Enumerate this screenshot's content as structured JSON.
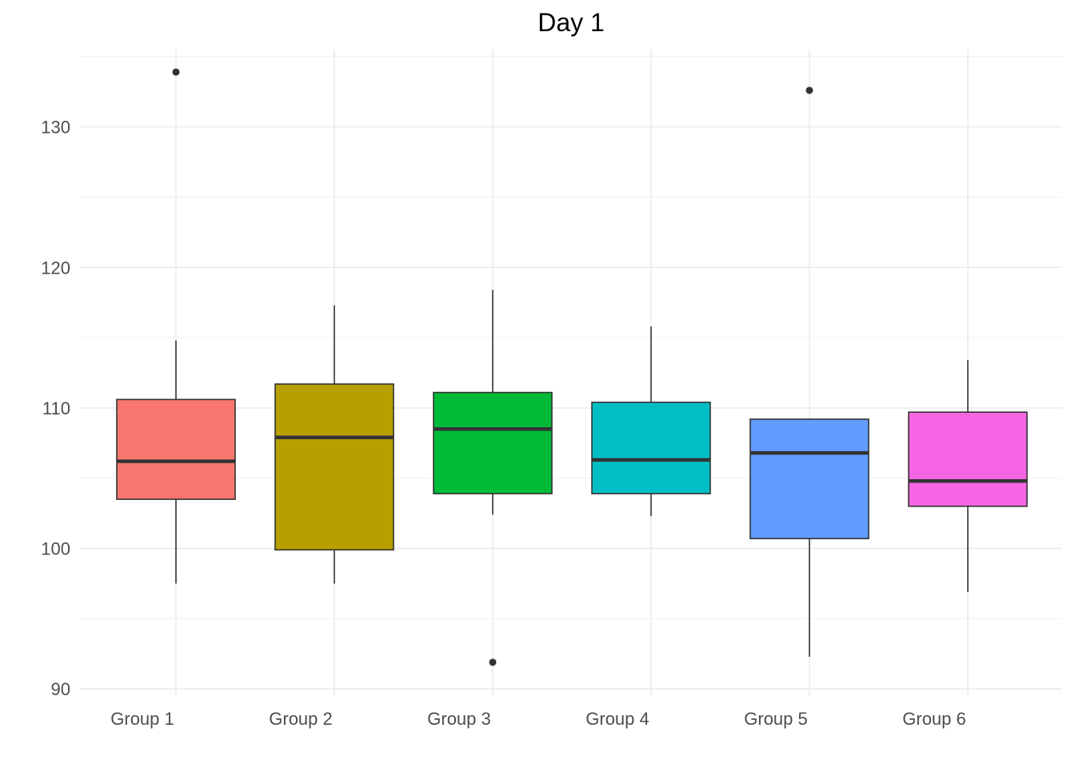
{
  "chart_data": {
    "type": "boxplot",
    "title": "Day 1",
    "xlabel": "",
    "ylabel": "",
    "ylim": [
      89.5,
      135.5
    ],
    "y_ticks": [
      90,
      100,
      110,
      120,
      130
    ],
    "grid": true,
    "legend": "none",
    "categories": [
      "Group 1",
      "Group 2",
      "Group 3",
      "Group 4",
      "Group 5",
      "Group 6"
    ],
    "boxes": [
      {
        "group": "Group 1",
        "color": "#F8766D",
        "whisker_low": 97.5,
        "q1": 103.5,
        "median": 106.2,
        "q3": 110.6,
        "whisker_high": 114.8,
        "outliers": [
          133.9
        ]
      },
      {
        "group": "Group 2",
        "color": "#B79F00",
        "whisker_low": 97.5,
        "q1": 99.9,
        "median": 107.9,
        "q3": 111.7,
        "whisker_high": 117.3,
        "outliers": []
      },
      {
        "group": "Group 3",
        "color": "#00BA38",
        "whisker_low": 102.4,
        "q1": 103.9,
        "median": 108.5,
        "q3": 111.1,
        "whisker_high": 118.4,
        "outliers": [
          91.9
        ]
      },
      {
        "group": "Group 4",
        "color": "#00BFC4",
        "whisker_low": 102.3,
        "q1": 103.9,
        "median": 106.3,
        "q3": 110.4,
        "whisker_high": 115.8,
        "outliers": []
      },
      {
        "group": "Group 5",
        "color": "#619CFF",
        "whisker_low": 92.3,
        "q1": 100.7,
        "median": 106.8,
        "q3": 109.2,
        "whisker_high": 109.2,
        "outliers": [
          132.6
        ]
      },
      {
        "group": "Group 6",
        "color": "#F564E3",
        "whisker_low": 96.9,
        "q1": 103.0,
        "median": 104.8,
        "q3": 109.7,
        "whisker_high": 113.4,
        "outliers": []
      }
    ]
  }
}
